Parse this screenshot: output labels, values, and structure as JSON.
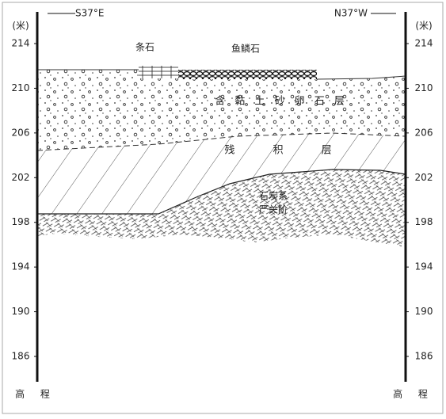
{
  "header": {
    "left_direction": "S37°E",
    "right_direction": "N37°W"
  },
  "axis": {
    "unit": "(米)",
    "ticks": [
      214,
      210,
      206,
      202,
      198,
      194,
      190,
      186
    ],
    "label": "高 程"
  },
  "labels": {
    "stone_strip": "条石",
    "fish_scale": "鱼鳞石",
    "gravel_layer": "含 黏 土 砂 卵 石 层",
    "residual_layer": "残 积 层",
    "bedrock_system": "石炭系",
    "bedrock_stage": "严关阶"
  }
}
